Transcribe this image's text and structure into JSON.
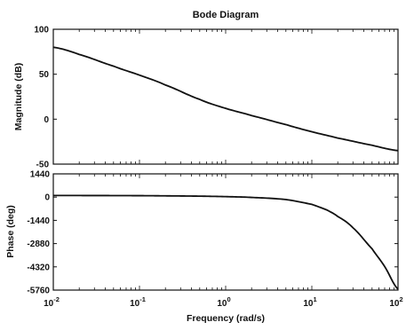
{
  "chart_data": [
    {
      "type": "line",
      "panel": "magnitude",
      "title": "Bode Diagram",
      "ylabel": "Magnitude (dB)",
      "xscale": "log",
      "xlim": [
        0.01,
        100
      ],
      "ylim": [
        -50,
        100
      ],
      "yticks": [
        100,
        50,
        0,
        -50
      ],
      "ytick_labels": [
        "100",
        "50",
        "0",
        "-50"
      ],
      "grid": false,
      "series": [
        {
          "x": [
            0.01,
            0.02,
            0.05,
            0.1,
            0.2,
            0.5,
            1,
            2,
            5,
            10,
            20,
            50,
            100
          ],
          "y": [
            80,
            72,
            59,
            49,
            38,
            22,
            12,
            4,
            -6,
            -14,
            -21,
            -29,
            -35
          ]
        }
      ]
    },
    {
      "type": "line",
      "panel": "phase",
      "ylabel": "Phase (deg)",
      "xlabel": "Frequency (rad/s)",
      "xscale": "log",
      "xlim": [
        0.01,
        100
      ],
      "ylim": [
        -5760,
        1440
      ],
      "yticks": [
        1440,
        0,
        -1440,
        -2880,
        -4320,
        -5760
      ],
      "ytick_labels": [
        "1440",
        "0",
        "-1440",
        "-2880",
        "-4320",
        "-5760"
      ],
      "xticks": [
        0.01,
        0.1,
        1,
        10,
        100
      ],
      "xtick_labels": [
        {
          "base": "10",
          "exp": "-2"
        },
        {
          "base": "10",
          "exp": "-1"
        },
        {
          "base": "10",
          "exp": "0"
        },
        {
          "base": "10",
          "exp": "1"
        },
        {
          "base": "10",
          "exp": "2"
        }
      ],
      "grid": false,
      "series": [
        {
          "x": [
            0.01,
            0.1,
            0.5,
            1,
            2,
            5,
            10,
            15,
            20,
            30,
            50,
            70,
            100
          ],
          "y": [
            100,
            90,
            60,
            30,
            -20,
            -150,
            -450,
            -800,
            -1200,
            -1900,
            -3200,
            -4300,
            -5700
          ]
        }
      ]
    }
  ]
}
